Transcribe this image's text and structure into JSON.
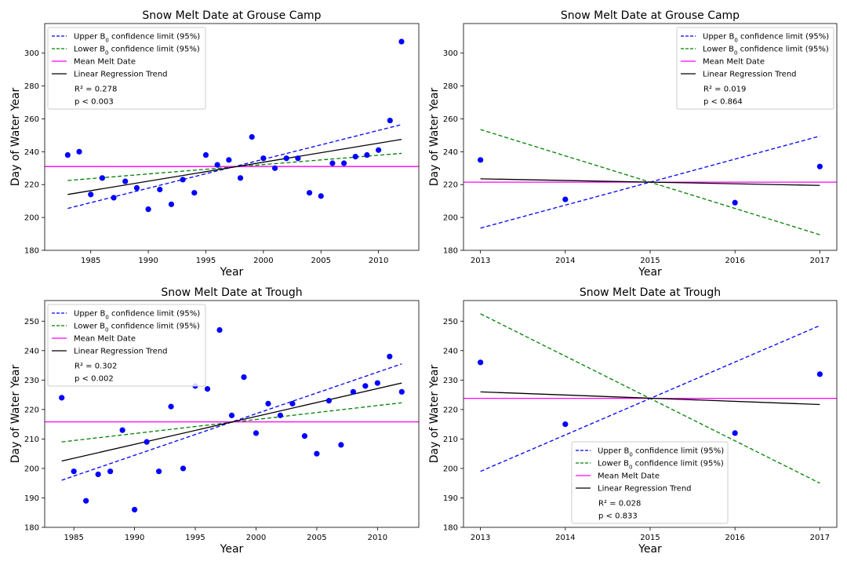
{
  "chart_data": [
    {
      "type": "scatter",
      "title": "Snow Melt Date at Grouse Camp",
      "xlabel": "Year",
      "ylabel": "Day of Water Year",
      "xlim": [
        1981,
        2013.5
      ],
      "ylim": [
        180,
        318
      ],
      "xticks": [
        1985,
        1990,
        1995,
        2000,
        2005,
        2010
      ],
      "yticks": [
        180,
        200,
        220,
        240,
        260,
        280,
        300
      ],
      "legend_position": "top-left",
      "points": {
        "x": [
          1983,
          1984,
          1985,
          1986,
          1987,
          1988,
          1989,
          1990,
          1991,
          1992,
          1993,
          1994,
          1995,
          1996,
          1997,
          1998,
          1999,
          2000,
          2001,
          2002,
          2003,
          2004,
          2005,
          2006,
          2007,
          2008,
          2009,
          2010,
          2011,
          2012
        ],
        "y": [
          238,
          240,
          214,
          224,
          212,
          222,
          218,
          205,
          217,
          208,
          223,
          215,
          238,
          232,
          235,
          224,
          249,
          236,
          230,
          236,
          236,
          215,
          213,
          233,
          233,
          237,
          238,
          241,
          259,
          307
        ]
      },
      "series": [
        {
          "name": "Upper B₀ confidence limit (95%)",
          "style": "dashed",
          "color": "#0000ff",
          "x": [
            1983,
            2012
          ],
          "y": [
            205.5,
            256.5
          ]
        },
        {
          "name": "Lower B₀ confidence limit (95%)",
          "style": "dashed",
          "color": "#008000",
          "x": [
            1983,
            2012
          ],
          "y": [
            222.5,
            239
          ]
        },
        {
          "name": "Mean Melt Date",
          "style": "hline",
          "color": "#ff00ff",
          "y": 231
        },
        {
          "name": "Linear Regression Trend",
          "style": "solid",
          "color": "#000000",
          "x": [
            1983,
            2012
          ],
          "y": [
            214,
            247.5
          ]
        }
      ],
      "stats": [
        "R² = 0.278",
        "p < 0.003"
      ]
    },
    {
      "type": "scatter",
      "title": "Snow Melt Date at Grouse Camp",
      "xlabel": "Year",
      "ylabel": "Day of Water Year",
      "xlim": [
        2012.8,
        2017.2
      ],
      "ylim": [
        180,
        318
      ],
      "xticks": [
        2013,
        2014,
        2015,
        2016,
        2017
      ],
      "yticks": [
        180,
        200,
        220,
        240,
        260,
        280,
        300
      ],
      "legend_position": "top-right",
      "points": {
        "x": [
          2013,
          2014,
          2016,
          2017
        ],
        "y": [
          235,
          211,
          209,
          231
        ]
      },
      "series": [
        {
          "name": "Upper B₀ confidence limit (95%)",
          "style": "dashed",
          "color": "#0000ff",
          "x": [
            2013,
            2017
          ],
          "y": [
            193.5,
            249.5
          ]
        },
        {
          "name": "Lower B₀ confidence limit (95%)",
          "style": "dashed",
          "color": "#008000",
          "x": [
            2013,
            2017
          ],
          "y": [
            253.5,
            189.5
          ]
        },
        {
          "name": "Mean Melt Date",
          "style": "hline",
          "color": "#ff00ff",
          "y": 221.5
        },
        {
          "name": "Linear Regression Trend",
          "style": "solid",
          "color": "#000000",
          "x": [
            2013,
            2017
          ],
          "y": [
            223.5,
            219.5
          ]
        }
      ],
      "stats": [
        "R² = 0.019",
        "p < 0.864"
      ]
    },
    {
      "type": "scatter",
      "title": "Snow Melt Date at Trough",
      "xlabel": "Year",
      "ylabel": "Day of Water Year",
      "xlim": [
        1982.6,
        2013.4
      ],
      "ylim": [
        180,
        257
      ],
      "xticks": [
        1985,
        1990,
        1995,
        2000,
        2005,
        2010
      ],
      "yticks": [
        180,
        190,
        200,
        210,
        220,
        230,
        240,
        250
      ],
      "legend_position": "top-left",
      "points": {
        "x": [
          1984,
          1985,
          1986,
          1987,
          1988,
          1989,
          1990,
          1991,
          1992,
          1993,
          1994,
          1995,
          1996,
          1997,
          1998,
          1999,
          2000,
          2001,
          2002,
          2003,
          2004,
          2005,
          2006,
          2007,
          2008,
          2009,
          2010,
          2011,
          2012
        ],
        "y": [
          224,
          199,
          189,
          198,
          199,
          213,
          186,
          209,
          199,
          221,
          200,
          228,
          227,
          247,
          218,
          231,
          212,
          222,
          218,
          222,
          211,
          205,
          223,
          208,
          226,
          228,
          229,
          238,
          226
        ]
      },
      "series": [
        {
          "name": "Upper B₀ confidence limit (95%)",
          "style": "dashed",
          "color": "#0000ff",
          "x": [
            1984,
            2012
          ],
          "y": [
            196,
            235.5
          ]
        },
        {
          "name": "Lower B₀ confidence limit (95%)",
          "style": "dashed",
          "color": "#008000",
          "x": [
            1984,
            2012
          ],
          "y": [
            209,
            222.3
          ]
        },
        {
          "name": "Mean Melt Date",
          "style": "hline",
          "color": "#ff00ff",
          "y": 215.8
        },
        {
          "name": "Linear Regression Trend",
          "style": "solid",
          "color": "#000000",
          "x": [
            1984,
            2012
          ],
          "y": [
            202.5,
            229
          ]
        }
      ],
      "stats": [
        "R² = 0.302",
        "p < 0.002"
      ]
    },
    {
      "type": "scatter",
      "title": "Snow Melt Date at Trough",
      "xlabel": "Year",
      "ylabel": "Day of Water Year",
      "xlim": [
        2012.8,
        2017.2
      ],
      "ylim": [
        180,
        257
      ],
      "xticks": [
        2013,
        2014,
        2015,
        2016,
        2017
      ],
      "yticks": [
        180,
        190,
        200,
        210,
        220,
        230,
        240,
        250
      ],
      "legend_position": "lower-center",
      "points": {
        "x": [
          2013,
          2014,
          2016,
          2017
        ],
        "y": [
          236,
          215,
          212,
          232
        ]
      },
      "series": [
        {
          "name": "Upper B₀ confidence limit (95%)",
          "style": "dashed",
          "color": "#0000ff",
          "x": [
            2013,
            2017
          ],
          "y": [
            199,
            248.5
          ]
        },
        {
          "name": "Lower B₀ confidence limit (95%)",
          "style": "dashed",
          "color": "#008000",
          "x": [
            2013,
            2017
          ],
          "y": [
            252.5,
            195
          ]
        },
        {
          "name": "Mean Melt Date",
          "style": "hline",
          "color": "#ff00ff",
          "y": 223.8
        },
        {
          "name": "Linear Regression Trend",
          "style": "solid",
          "color": "#000000",
          "x": [
            2013,
            2017
          ],
          "y": [
            226,
            221.7
          ]
        }
      ],
      "stats": [
        "R² = 0.028",
        "p < 0.833"
      ]
    }
  ]
}
